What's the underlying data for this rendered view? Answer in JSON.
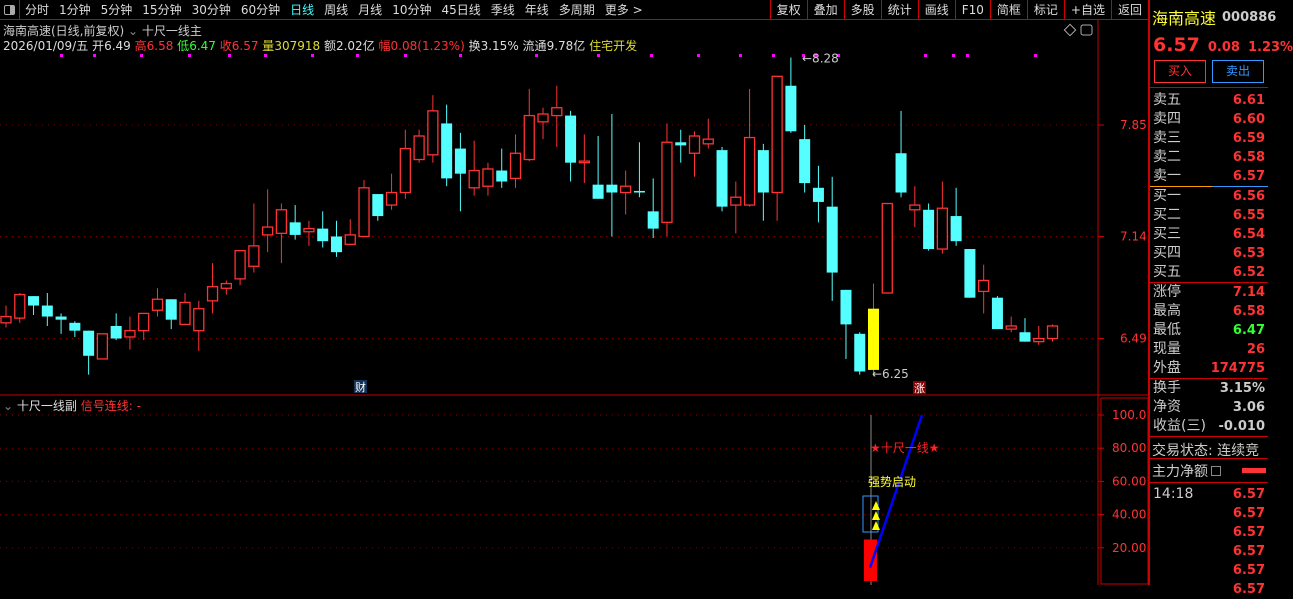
{
  "toolbar": {
    "periods": [
      "分时",
      "1分钟",
      "5分钟",
      "15分钟",
      "30分钟",
      "60分钟",
      "日线",
      "周线",
      "月线",
      "10分钟",
      "45日线",
      "季线",
      "年线",
      "多周期",
      "更多 >"
    ],
    "active": "日线",
    "tools": [
      "复权",
      "叠加",
      "多股",
      "统计",
      "画线",
      "F10",
      "简框",
      "标记",
      "+自选",
      "返回"
    ]
  },
  "header": {
    "title": "海南高速(日线,前复权)",
    "indicator": "十尺一线主",
    "date": "2026/01/09/五",
    "open_label": "开",
    "open": "6.49",
    "high_label": "高",
    "high": "6.58",
    "low_label": "低",
    "low": "6.47",
    "close_label": "收",
    "close": "6.57",
    "vol_label": "量",
    "vol": "307918",
    "amt_label": "额",
    "amt": "2.02亿",
    "chg_label": "幅",
    "chg": "0.08(1.23%)",
    "turn_label": "换",
    "turn": "3.15%",
    "float_label": "流通",
    "float": "9.78亿",
    "sector": "住宅开发"
  },
  "main_chart": {
    "y_ticks": [
      7.85,
      7.14,
      6.49
    ],
    "max_label": "8.28",
    "min_label": "6.25",
    "marker_cai": "财",
    "marker_zhang": "涨",
    "up_color": "#ff3333",
    "down_color": "#55ffff",
    "limit_color": "#ffff00",
    "candles": [
      [
        6.59,
        6.7,
        6.56,
        6.63
      ],
      [
        6.62,
        6.78,
        6.59,
        6.77
      ],
      [
        6.76,
        6.76,
        6.64,
        6.7
      ],
      [
        6.7,
        6.78,
        6.57,
        6.63
      ],
      [
        6.63,
        6.65,
        6.52,
        6.61
      ],
      [
        6.59,
        6.6,
        6.5,
        6.54
      ],
      [
        6.54,
        6.54,
        6.26,
        6.38
      ],
      [
        6.36,
        6.52,
        6.36,
        6.52
      ],
      [
        6.57,
        6.65,
        6.48,
        6.49
      ],
      [
        6.5,
        6.63,
        6.42,
        6.54
      ],
      [
        6.54,
        6.65,
        6.48,
        6.65
      ],
      [
        6.67,
        6.81,
        6.63,
        6.74
      ],
      [
        6.74,
        6.74,
        6.55,
        6.61
      ],
      [
        6.58,
        6.78,
        6.58,
        6.72
      ],
      [
        6.54,
        6.73,
        6.41,
        6.68
      ],
      [
        6.73,
        6.97,
        6.65,
        6.82
      ],
      [
        6.81,
        6.86,
        6.77,
        6.84
      ],
      [
        6.87,
        7.05,
        6.83,
        7.05
      ],
      [
        6.95,
        7.35,
        6.91,
        7.08
      ],
      [
        7.15,
        7.44,
        7.04,
        7.2
      ],
      [
        7.16,
        7.35,
        6.97,
        7.31
      ],
      [
        7.23,
        7.34,
        7.12,
        7.15
      ],
      [
        7.17,
        7.24,
        7.08,
        7.19
      ],
      [
        7.19,
        7.3,
        7.07,
        7.11
      ],
      [
        7.14,
        7.24,
        7.01,
        7.04
      ],
      [
        7.09,
        7.25,
        7.09,
        7.15
      ],
      [
        7.14,
        7.5,
        7.14,
        7.45
      ],
      [
        7.41,
        7.41,
        7.24,
        7.27
      ],
      [
        7.34,
        7.54,
        7.31,
        7.42
      ],
      [
        7.42,
        7.82,
        7.38,
        7.7
      ],
      [
        7.63,
        7.82,
        7.61,
        7.78
      ],
      [
        7.66,
        8.04,
        7.61,
        7.94
      ],
      [
        7.86,
        7.98,
        7.46,
        7.51
      ],
      [
        7.7,
        7.8,
        7.3,
        7.54
      ],
      [
        7.45,
        7.75,
        7.4,
        7.56
      ],
      [
        7.46,
        7.61,
        7.4,
        7.57
      ],
      [
        7.56,
        7.7,
        7.45,
        7.49
      ],
      [
        7.51,
        7.79,
        7.45,
        7.67
      ],
      [
        7.63,
        8.08,
        7.62,
        7.91
      ],
      [
        7.87,
        7.96,
        7.76,
        7.92
      ],
      [
        7.91,
        8.1,
        7.71,
        7.96
      ],
      [
        7.91,
        7.94,
        7.49,
        7.61
      ],
      [
        7.61,
        7.79,
        7.48,
        7.62
      ],
      [
        7.47,
        7.78,
        7.38,
        7.38
      ],
      [
        7.47,
        7.92,
        7.14,
        7.42
      ],
      [
        7.42,
        7.56,
        7.28,
        7.46
      ],
      [
        7.43,
        7.74,
        7.39,
        7.42
      ],
      [
        7.3,
        7.51,
        7.13,
        7.19
      ],
      [
        7.23,
        7.86,
        7.14,
        7.74
      ],
      [
        7.74,
        7.82,
        7.61,
        7.72
      ],
      [
        7.67,
        7.81,
        7.52,
        7.78
      ],
      [
        7.73,
        7.89,
        7.7,
        7.76
      ],
      [
        7.69,
        7.71,
        7.3,
        7.33
      ],
      [
        7.34,
        7.49,
        7.16,
        7.39
      ],
      [
        7.34,
        8.08,
        7.33,
        7.77
      ],
      [
        7.69,
        7.73,
        7.24,
        7.42
      ],
      [
        7.42,
        8.16,
        7.24,
        8.16
      ],
      [
        8.1,
        8.28,
        7.8,
        7.81
      ],
      [
        7.76,
        7.85,
        7.42,
        7.48
      ],
      [
        7.45,
        7.59,
        7.23,
        7.36
      ],
      [
        7.33,
        7.52,
        6.73,
        6.91
      ],
      [
        6.8,
        6.8,
        6.36,
        6.58
      ],
      [
        6.52,
        6.53,
        6.26,
        6.28
      ],
      [
        6.29,
        6.84,
        6.25,
        6.68
      ],
      [
        6.78,
        7.35,
        6.78,
        7.35
      ],
      [
        7.67,
        7.94,
        7.39,
        7.42
      ],
      [
        7.31,
        7.46,
        7.2,
        7.34
      ],
      [
        7.31,
        7.35,
        7.05,
        7.06
      ],
      [
        7.06,
        7.49,
        7.03,
        7.32
      ],
      [
        7.27,
        7.45,
        7.08,
        7.11
      ],
      [
        7.06,
        7.06,
        6.75,
        6.75
      ],
      [
        6.79,
        6.96,
        6.65,
        6.86
      ],
      [
        6.75,
        6.76,
        6.55,
        6.55
      ],
      [
        6.55,
        6.63,
        6.53,
        6.57
      ],
      [
        6.53,
        6.62,
        6.47,
        6.47
      ],
      [
        6.47,
        6.57,
        6.45,
        6.49
      ],
      [
        6.49,
        6.58,
        6.47,
        6.57
      ]
    ],
    "limit_index": 63
  },
  "sub_chart": {
    "title": "十尺一线副",
    "signal_label": "信号连线: -",
    "y_ticks": [
      "100.0",
      "80.00",
      "60.00",
      "40.00",
      "20.00"
    ],
    "text_star": "★十尺一线★",
    "text_strong": "强势启动",
    "bar_value": 25,
    "line_from": 8,
    "line_to": 100
  },
  "quote": {
    "name": "海南高速",
    "code": "000886",
    "price": "6.57",
    "change": "0.08",
    "pct": "1.23%",
    "buy": "买入",
    "sell": "卖出",
    "asks": [
      [
        "卖五",
        "6.61"
      ],
      [
        "卖四",
        "6.60"
      ],
      [
        "卖三",
        "6.59"
      ],
      [
        "卖二",
        "6.58"
      ],
      [
        "卖一",
        "6.57"
      ]
    ],
    "bids": [
      [
        "买一",
        "6.56"
      ],
      [
        "买二",
        "6.55"
      ],
      [
        "买三",
        "6.54"
      ],
      [
        "买四",
        "6.53"
      ],
      [
        "买五",
        "6.52"
      ]
    ],
    "stats": [
      [
        "涨停",
        "7.14"
      ],
      [
        "最高",
        "6.58"
      ],
      [
        "最低",
        "6.47"
      ],
      [
        "现量",
        "26"
      ],
      [
        "外盘",
        "174775"
      ]
    ],
    "stats2": [
      [
        "换手",
        "3.15%"
      ],
      [
        "净资",
        "3.06"
      ],
      [
        "收益(三)",
        "-0.010"
      ]
    ],
    "trade_status": "交易状态: 连续竞",
    "main_net": "主力净额",
    "ticks": [
      [
        "14:18",
        "6.57"
      ],
      [
        "",
        "6.57"
      ],
      [
        "",
        "6.57"
      ],
      [
        "",
        "6.57"
      ],
      [
        "",
        "6.57"
      ],
      [
        "",
        "6.57"
      ]
    ]
  }
}
